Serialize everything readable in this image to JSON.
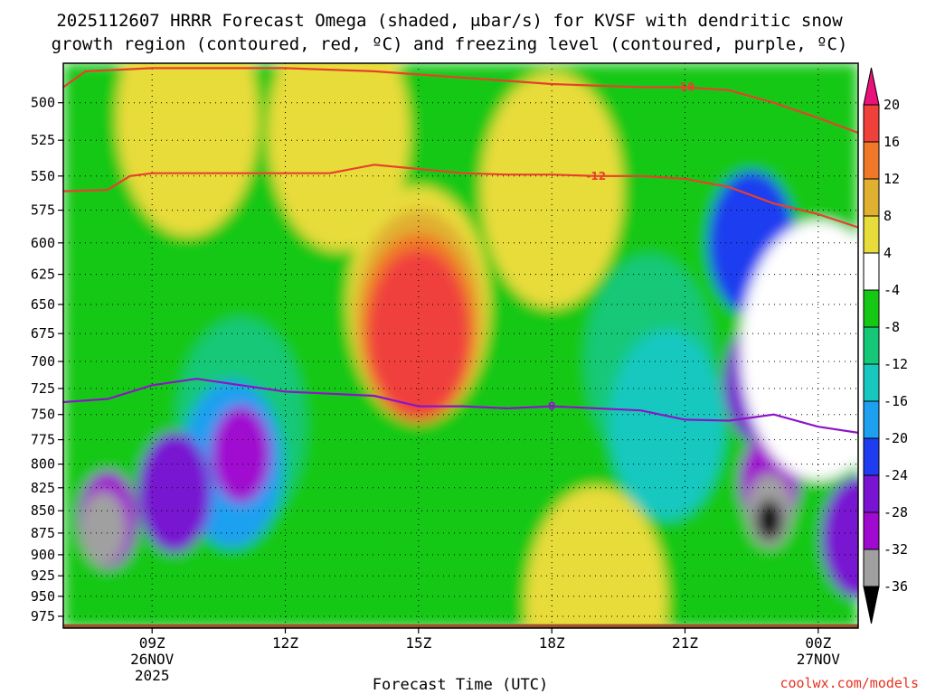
{
  "header": {
    "title_line1": "2025112607 HRRR Forecast Omega (shaded, μbar/s) for KVSF with dendritic snow",
    "title_line2": "growth region (contoured, red, ºC) and freezing level (contoured, purple, ºC)"
  },
  "footer": {
    "credit": "coolwx.com/models"
  },
  "chart_data": {
    "type": "heatmap",
    "title": "2025112607 HRRR Forecast Omega (shaded, μbar/s) for KVSF with dendritic snow growth region (contoured, red, ºC) and freezing level (contoured, purple, ºC)",
    "xlabel": "Forecast Time (UTC)",
    "ylabel": "",
    "x_range_hours": [
      7.0,
      24.9
    ],
    "y_range_hPa": [
      475,
      990
    ],
    "y_scale": "log-pressure (inverted)",
    "grid": "dotted",
    "y_ticks": [
      500,
      525,
      550,
      575,
      600,
      625,
      650,
      675,
      700,
      725,
      750,
      775,
      800,
      825,
      850,
      875,
      900,
      925,
      950,
      975
    ],
    "x_ticks": [
      {
        "hour": 9,
        "label": "09Z",
        "sub1": "26NOV",
        "sub2": "2025"
      },
      {
        "hour": 12,
        "label": "12Z",
        "sub1": "",
        "sub2": ""
      },
      {
        "hour": 15,
        "label": "15Z",
        "sub1": "",
        "sub2": ""
      },
      {
        "hour": 18,
        "label": "18Z",
        "sub1": "",
        "sub2": ""
      },
      {
        "hour": 21,
        "label": "21Z",
        "sub1": "",
        "sub2": ""
      },
      {
        "hour": 24,
        "label": "00Z",
        "sub1": "27NOV",
        "sub2": ""
      }
    ],
    "colorbar": {
      "labels": [
        "20",
        "16",
        "12",
        "8",
        "4",
        "-4",
        "-8",
        "-12",
        "-16",
        "-20",
        "-24",
        "-28",
        "-32",
        "-36"
      ],
      "bins": [
        {
          "min": 20,
          "max": null,
          "color": "#e8127a"
        },
        {
          "min": 16,
          "max": 20,
          "color": "#f0403c"
        },
        {
          "min": 12,
          "max": 16,
          "color": "#f07828"
        },
        {
          "min": 8,
          "max": 12,
          "color": "#e0b030"
        },
        {
          "min": 4,
          "max": 8,
          "color": "#e8dc3a"
        },
        {
          "min": -4,
          "max": 4,
          "color": "#ffffff"
        },
        {
          "min": -8,
          "max": -4,
          "color": "#14c814"
        },
        {
          "min": -12,
          "max": -8,
          "color": "#14c878"
        },
        {
          "min": -16,
          "max": -12,
          "color": "#18c8c0"
        },
        {
          "min": -20,
          "max": -16,
          "color": "#1ea0f0"
        },
        {
          "min": -24,
          "max": -20,
          "color": "#1e3cf0"
        },
        {
          "min": -28,
          "max": -24,
          "color": "#7814d2"
        },
        {
          "min": -32,
          "max": -28,
          "color": "#a00ad0"
        },
        {
          "min": -36,
          "max": -32,
          "color": "#a0a0a0"
        },
        {
          "min": null,
          "max": -36,
          "color": "#000000"
        }
      ]
    },
    "omega_features": [
      {
        "value": 6,
        "hour": 9.8,
        "hPa": 510
      },
      {
        "value": 6,
        "hour": 13.2,
        "hPa": 520
      },
      {
        "value": 6,
        "hour": 15.0,
        "hPa": 650
      },
      {
        "value": 10,
        "hour": 15.0,
        "hPa": 660
      },
      {
        "value": 14,
        "hour": 15.0,
        "hPa": 670
      },
      {
        "value": 18,
        "hour": 15.0,
        "hPa": 675
      },
      {
        "value": 6,
        "hour": 18.0,
        "hPa": 560
      },
      {
        "value": 6,
        "hour": 19.0,
        "hPa": 960
      },
      {
        "value": -10,
        "hour": 11.0,
        "hPa": 760
      },
      {
        "value": -18,
        "hour": 10.8,
        "hPa": 800
      },
      {
        "value": -26,
        "hour": 9.5,
        "hPa": 830
      },
      {
        "value": -30,
        "hour": 8.0,
        "hPa": 860
      },
      {
        "value": -34,
        "hour": 7.9,
        "hPa": 870
      },
      {
        "value": -30,
        "hour": 11.0,
        "hPa": 790
      },
      {
        "value": -10,
        "hour": 20.2,
        "hPa": 700
      },
      {
        "value": -14,
        "hour": 20.6,
        "hPa": 760
      },
      {
        "value": -22,
        "hour": 22.5,
        "hPa": 600
      },
      {
        "value": -26,
        "hour": 22.7,
        "hPa": 720
      },
      {
        "value": -30,
        "hour": 22.9,
        "hPa": 820
      },
      {
        "value": -34,
        "hour": 22.9,
        "hPa": 850
      },
      {
        "value": -40,
        "hour": 22.9,
        "hPa": 860
      },
      {
        "value": -26,
        "hour": 24.9,
        "hPa": 880
      },
      {
        "value": 2,
        "hour": 24.0,
        "hPa": 690
      }
    ],
    "contours": [
      {
        "label": "-18",
        "color": "#e8402c",
        "points": [
          [
            7.0,
            490
          ],
          [
            7.5,
            480
          ],
          [
            9,
            478
          ],
          [
            12,
            478
          ],
          [
            14,
            480
          ],
          [
            16,
            484
          ],
          [
            18,
            488
          ],
          [
            20,
            490
          ],
          [
            21,
            490
          ],
          [
            22,
            492
          ],
          [
            23,
            500
          ],
          [
            24,
            510
          ],
          [
            24.9,
            520
          ]
        ]
      },
      {
        "label": "-12",
        "color": "#e8402c",
        "points": [
          [
            7.0,
            561
          ],
          [
            8,
            560
          ],
          [
            8.5,
            550
          ],
          [
            9,
            548
          ],
          [
            12,
            548
          ],
          [
            13,
            548
          ],
          [
            14,
            542
          ],
          [
            15,
            545
          ],
          [
            16,
            548
          ],
          [
            17,
            549
          ],
          [
            18,
            549
          ],
          [
            19,
            550
          ],
          [
            20,
            550
          ],
          [
            21,
            552
          ],
          [
            22,
            558
          ],
          [
            23,
            570
          ],
          [
            24,
            578
          ],
          [
            24.9,
            588
          ]
        ]
      },
      {
        "label": "0",
        "color": "#8c14c8",
        "points": [
          [
            7.0,
            738
          ],
          [
            8,
            735
          ],
          [
            9,
            722
          ],
          [
            10,
            716
          ],
          [
            11,
            722
          ],
          [
            12,
            728
          ],
          [
            13,
            730
          ],
          [
            14,
            732
          ],
          [
            15,
            742
          ],
          [
            16,
            742
          ],
          [
            17,
            744
          ],
          [
            18,
            742
          ],
          [
            19,
            744
          ],
          [
            20,
            746
          ],
          [
            21,
            755
          ],
          [
            22,
            756
          ],
          [
            23,
            750
          ],
          [
            24,
            762
          ],
          [
            24.9,
            768
          ]
        ]
      }
    ]
  }
}
